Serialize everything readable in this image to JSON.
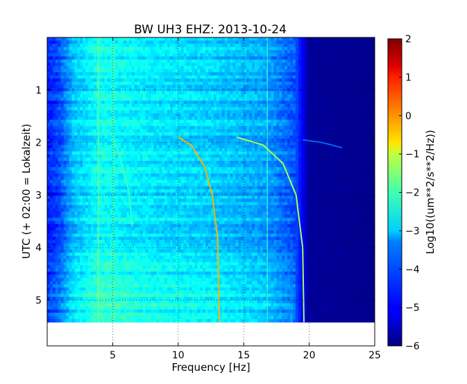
{
  "chart_data": {
    "type": "heatmap",
    "title": "BW UH3 EHZ: 2013-10-24",
    "xlabel": "Frequency [Hz]",
    "ylabel": "UTC (+ 02:00 = Lokalzeit)",
    "xlim": [
      0,
      25
    ],
    "ylim": [
      5.87,
      0
    ],
    "data_time_end": 5.42,
    "xticks": [
      5,
      10,
      15,
      20,
      25
    ],
    "yticks": [
      1,
      2,
      3,
      4,
      5
    ],
    "grid": true,
    "colorbar": {
      "label": "Log10((um**2/s**2/Hz))",
      "range": [
        -6,
        2
      ],
      "ticks": [
        -6,
        -5,
        -4,
        -3,
        -2,
        -1,
        0,
        1,
        2
      ],
      "colormap": "jet"
    },
    "background_levels": [
      {
        "frequency_hz": 0,
        "log_psd": -4.8
      },
      {
        "frequency_hz": 1,
        "log_psd": -4.4
      },
      {
        "frequency_hz": 2,
        "log_psd": -3.5
      },
      {
        "frequency_hz": 4,
        "log_psd": -2.9
      },
      {
        "frequency_hz": 8,
        "log_psd": -3.2
      },
      {
        "frequency_hz": 13,
        "log_psd": -3.4
      },
      {
        "frequency_hz": 16.5,
        "log_psd": -3.7
      },
      {
        "frequency_hz": 19,
        "log_psd": -4.4
      },
      {
        "frequency_hz": 20,
        "log_psd": -5.8
      },
      {
        "frequency_hz": 25,
        "log_psd": -5.9
      }
    ],
    "series": [
      {
        "points": [
          {
            "frequency_hz": 10,
            "time_h": 1.9
          },
          {
            "frequency_hz": 11,
            "time_h": 2.05
          },
          {
            "frequency_hz": 12,
            "time_h": 2.45
          },
          {
            "frequency_hz": 12.6,
            "time_h": 3.0
          },
          {
            "frequency_hz": 13,
            "time_h": 3.8
          },
          {
            "frequency_hz": 13.15,
            "time_h": 5.42
          }
        ],
        "log_psd": -0.4
      },
      {
        "points": [
          {
            "frequency_hz": 14.5,
            "time_h": 1.9
          },
          {
            "frequency_hz": 16.5,
            "time_h": 2.05
          },
          {
            "frequency_hz": 18,
            "time_h": 2.4
          },
          {
            "frequency_hz": 19,
            "time_h": 3.0
          },
          {
            "frequency_hz": 19.5,
            "time_h": 4.0
          },
          {
            "frequency_hz": 19.6,
            "time_h": 5.42
          }
        ],
        "log_psd": -1.7
      },
      {
        "points": [
          {
            "frequency_hz": 5,
            "time_h": 1.9
          },
          {
            "frequency_hz": 5.6,
            "time_h": 2.3
          },
          {
            "frequency_hz": 6.2,
            "time_h": 2.9
          },
          {
            "frequency_hz": 6.5,
            "time_h": 3.6
          }
        ],
        "log_psd": -2.5
      },
      {
        "points": [
          {
            "frequency_hz": 19.5,
            "time_h": 1.95
          },
          {
            "frequency_hz": 21,
            "time_h": 2.0
          },
          {
            "frequency_hz": 22.5,
            "time_h": 2.1
          }
        ],
        "log_psd": -4.2
      }
    ],
    "constant_lines": [
      {
        "frequency_hz": 3.9,
        "log_psd": -1.8
      },
      {
        "frequency_hz": 5.0,
        "log_psd": -2.3
      },
      {
        "frequency_hz": 16.8,
        "log_psd": -2.6
      }
    ]
  }
}
